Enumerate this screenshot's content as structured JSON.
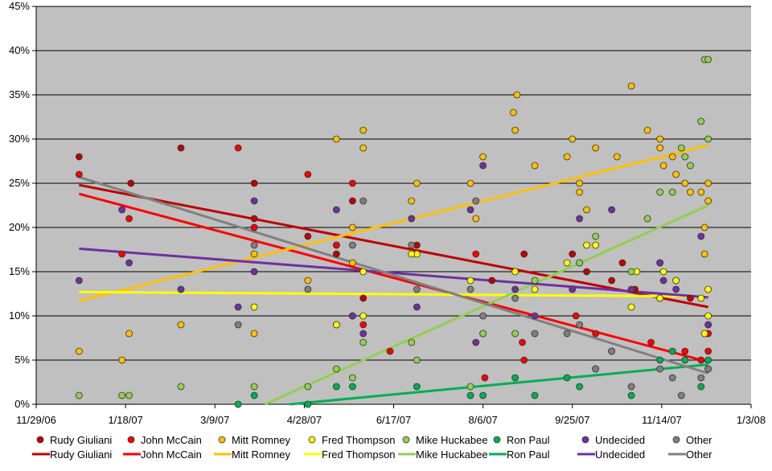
{
  "chart_data": {
    "type": "scatter",
    "title": "",
    "xlabel": "",
    "ylabel": "",
    "x_axis": {
      "type": "date",
      "min": "2006-11-29",
      "max": "2008-01-03",
      "tick_step_days": 50,
      "tick_labels": [
        "11/29/06",
        "1/18/07",
        "3/9/07",
        "4/28/07",
        "6/17/07",
        "8/6/07",
        "9/25/07",
        "11/14/07",
        "1/3/08"
      ]
    },
    "y_axis": {
      "min": 0,
      "max": 45,
      "step": 5,
      "format": "percent",
      "tick_labels": [
        "0%",
        "5%",
        "10%",
        "15%",
        "20%",
        "25%",
        "30%",
        "35%",
        "40%",
        "45%"
      ]
    },
    "grid": {
      "horizontal": true,
      "vertical": false
    },
    "plot_background": "#c0c0c0",
    "legend_placement": "bottom",
    "series": [
      {
        "name": "Rudy Giuliani",
        "color": "#c00000",
        "points": [
          [
            "2006-12-23",
            28
          ],
          [
            "2007-01-21",
            25
          ],
          [
            "2007-02-18",
            29
          ],
          [
            "2007-03-31",
            25
          ],
          [
            "2007-03-31",
            21
          ],
          [
            "2007-03-31",
            20
          ],
          [
            "2007-04-30",
            19
          ],
          [
            "2007-05-16",
            18
          ],
          [
            "2007-05-16",
            17
          ],
          [
            "2007-05-25",
            23
          ],
          [
            "2007-05-31",
            12
          ],
          [
            "2007-06-30",
            18
          ],
          [
            "2007-08-11",
            14
          ],
          [
            "2007-08-29",
            17
          ],
          [
            "2007-09-25",
            17
          ],
          [
            "2007-10-03",
            15
          ],
          [
            "2007-10-17",
            14
          ],
          [
            "2007-10-23",
            16
          ],
          [
            "2007-10-30",
            13
          ],
          [
            "2007-11-13",
            16
          ],
          [
            "2007-11-22",
            14
          ],
          [
            "2007-11-30",
            12
          ],
          [
            "2007-12-10",
            9
          ]
        ],
        "trend": [
          [
            "2006-12-23",
            24.8
          ],
          [
            "2007-12-10",
            11
          ]
        ]
      },
      {
        "name": "John McCain",
        "color": "#ff0000",
        "points": [
          [
            "2006-12-23",
            26
          ],
          [
            "2007-01-20",
            21
          ],
          [
            "2007-01-16",
            17
          ],
          [
            "2007-03-22",
            29
          ],
          [
            "2007-03-31",
            20
          ],
          [
            "2007-04-30",
            26
          ],
          [
            "2007-05-25",
            25
          ],
          [
            "2007-05-16",
            18
          ],
          [
            "2007-05-31",
            9
          ],
          [
            "2007-06-15",
            6
          ],
          [
            "2007-08-02",
            17
          ],
          [
            "2007-08-07",
            3
          ],
          [
            "2007-08-28",
            7
          ],
          [
            "2007-08-29",
            5
          ],
          [
            "2007-09-27",
            10
          ],
          [
            "2007-10-08",
            8
          ],
          [
            "2007-10-17",
            6
          ],
          [
            "2007-11-08",
            7
          ],
          [
            "2007-11-13",
            12
          ],
          [
            "2007-11-27",
            6
          ],
          [
            "2007-12-06",
            5
          ],
          [
            "2007-12-10",
            4
          ],
          [
            "2007-12-10",
            6
          ],
          [
            "2007-12-10",
            8
          ]
        ],
        "trend": [
          [
            "2006-12-23",
            23.8
          ],
          [
            "2007-12-10",
            4.8
          ]
        ]
      },
      {
        "name": "Mitt Romney",
        "color": "#ffc000",
        "points": [
          [
            "2006-12-23",
            6
          ],
          [
            "2007-01-16",
            5
          ],
          [
            "2007-01-20",
            8
          ],
          [
            "2007-02-18",
            9
          ],
          [
            "2007-03-31",
            17
          ],
          [
            "2007-03-31",
            8
          ],
          [
            "2007-04-30",
            14
          ],
          [
            "2007-05-16",
            30
          ],
          [
            "2007-05-16",
            9
          ],
          [
            "2007-05-25",
            20
          ],
          [
            "2007-05-25",
            16
          ],
          [
            "2007-05-31",
            31
          ],
          [
            "2007-05-31",
            29
          ],
          [
            "2007-06-30",
            25
          ],
          [
            "2007-06-27",
            23
          ],
          [
            "2007-07-30",
            25
          ],
          [
            "2007-08-02",
            21
          ],
          [
            "2007-08-06",
            28
          ],
          [
            "2007-08-23",
            33
          ],
          [
            "2007-08-25",
            35
          ],
          [
            "2007-08-24",
            31
          ],
          [
            "2007-09-04",
            27
          ],
          [
            "2007-09-22",
            28
          ],
          [
            "2007-09-25",
            30
          ],
          [
            "2007-09-29",
            25
          ],
          [
            "2007-09-29",
            24
          ],
          [
            "2007-10-03",
            22
          ],
          [
            "2007-10-08",
            29
          ],
          [
            "2007-10-20",
            28
          ],
          [
            "2007-10-28",
            36
          ],
          [
            "2007-11-06",
            31
          ],
          [
            "2007-11-13",
            30
          ],
          [
            "2007-11-13",
            29
          ],
          [
            "2007-11-15",
            27
          ],
          [
            "2007-11-20",
            28
          ],
          [
            "2007-11-22",
            26
          ],
          [
            "2007-11-27",
            25
          ],
          [
            "2007-11-30",
            24
          ],
          [
            "2007-12-06",
            24
          ],
          [
            "2007-12-10",
            25
          ],
          [
            "2007-12-10",
            23
          ],
          [
            "2007-12-08",
            20
          ],
          [
            "2007-12-08",
            17
          ]
        ],
        "trend": [
          [
            "2006-12-23",
            11.7
          ],
          [
            "2007-12-10",
            29.3
          ]
        ]
      },
      {
        "name": "Fred Thompson",
        "color": "#ffff00",
        "points": [
          [
            "2007-03-31",
            11
          ],
          [
            "2007-05-16",
            9
          ],
          [
            "2007-05-25",
            10
          ],
          [
            "2007-05-31",
            15
          ],
          [
            "2007-05-31",
            10
          ],
          [
            "2007-06-30",
            17
          ],
          [
            "2007-06-27",
            17
          ],
          [
            "2007-07-30",
            14
          ],
          [
            "2007-08-06",
            8
          ],
          [
            "2007-08-24",
            15
          ],
          [
            "2007-09-04",
            13
          ],
          [
            "2007-09-22",
            16
          ],
          [
            "2007-09-29",
            16
          ],
          [
            "2007-10-03",
            18
          ],
          [
            "2007-10-08",
            18
          ],
          [
            "2007-10-28",
            11
          ],
          [
            "2007-10-31",
            15
          ],
          [
            "2007-11-13",
            12
          ],
          [
            "2007-11-15",
            15
          ],
          [
            "2007-11-22",
            14
          ],
          [
            "2007-12-06",
            12
          ],
          [
            "2007-12-10",
            13
          ],
          [
            "2007-12-10",
            10
          ],
          [
            "2007-12-08",
            8
          ]
        ],
        "trend": [
          [
            "2006-12-23",
            12.7
          ],
          [
            "2007-12-10",
            12.2
          ]
        ]
      },
      {
        "name": "Mike Huckabee",
        "color": "#92d050",
        "points": [
          [
            "2006-12-23",
            1
          ],
          [
            "2007-01-16",
            1
          ],
          [
            "2007-01-20",
            1
          ],
          [
            "2007-02-18",
            2
          ],
          [
            "2007-03-31",
            2
          ],
          [
            "2007-04-30",
            2
          ],
          [
            "2007-05-16",
            4
          ],
          [
            "2007-05-25",
            3
          ],
          [
            "2007-05-31",
            7
          ],
          [
            "2007-06-30",
            5
          ],
          [
            "2007-06-27",
            7
          ],
          [
            "2007-07-30",
            2
          ],
          [
            "2007-08-06",
            8
          ],
          [
            "2007-08-24",
            8
          ],
          [
            "2007-09-04",
            14
          ],
          [
            "2007-09-29",
            16
          ],
          [
            "2007-10-08",
            19
          ],
          [
            "2007-10-28",
            15
          ],
          [
            "2007-11-06",
            21
          ],
          [
            "2007-11-13",
            24
          ],
          [
            "2007-11-20",
            24
          ],
          [
            "2007-11-25",
            29
          ],
          [
            "2007-11-27",
            28
          ],
          [
            "2007-11-30",
            27
          ],
          [
            "2007-12-06",
            32
          ],
          [
            "2007-12-08",
            39
          ],
          [
            "2007-12-10",
            39
          ],
          [
            "2007-12-10",
            30
          ]
        ],
        "trend": [
          [
            "2007-04-06",
            0
          ],
          [
            "2007-12-10",
            22.5
          ]
        ]
      },
      {
        "name": "Ron Paul",
        "color": "#00b050",
        "points": [
          [
            "2007-03-22",
            0
          ],
          [
            "2007-03-31",
            1
          ],
          [
            "2007-04-30",
            0
          ],
          [
            "2007-05-16",
            2
          ],
          [
            "2007-05-25",
            2
          ],
          [
            "2007-06-30",
            2
          ],
          [
            "2007-07-30",
            1
          ],
          [
            "2007-08-06",
            1
          ],
          [
            "2007-08-24",
            3
          ],
          [
            "2007-09-04",
            1
          ],
          [
            "2007-09-22",
            3
          ],
          [
            "2007-09-29",
            2
          ],
          [
            "2007-10-08",
            4
          ],
          [
            "2007-10-28",
            1
          ],
          [
            "2007-11-13",
            5
          ],
          [
            "2007-11-20",
            6
          ],
          [
            "2007-11-27",
            5
          ],
          [
            "2007-12-06",
            2
          ],
          [
            "2007-12-10",
            5
          ]
        ],
        "trend": [
          [
            "2007-04-20",
            0
          ],
          [
            "2007-12-10",
            4.5
          ]
        ]
      },
      {
        "name": "Undecided",
        "color": "#7030a0",
        "points": [
          [
            "2006-12-23",
            14
          ],
          [
            "2007-01-16",
            22
          ],
          [
            "2007-01-20",
            16
          ],
          [
            "2007-02-18",
            13
          ],
          [
            "2007-03-22",
            11
          ],
          [
            "2007-03-31",
            23
          ],
          [
            "2007-03-31",
            15
          ],
          [
            "2007-05-16",
            22
          ],
          [
            "2007-05-25",
            10
          ],
          [
            "2007-05-31",
            8
          ],
          [
            "2007-06-27",
            21
          ],
          [
            "2007-06-30",
            11
          ],
          [
            "2007-07-30",
            22
          ],
          [
            "2007-08-02",
            7
          ],
          [
            "2007-08-06",
            27
          ],
          [
            "2007-08-24",
            13
          ],
          [
            "2007-09-04",
            10
          ],
          [
            "2007-09-25",
            13
          ],
          [
            "2007-09-29",
            21
          ],
          [
            "2007-10-17",
            22
          ],
          [
            "2007-10-28",
            13
          ],
          [
            "2007-11-13",
            16
          ],
          [
            "2007-11-15",
            14
          ],
          [
            "2007-11-22",
            13
          ],
          [
            "2007-12-06",
            19
          ],
          [
            "2007-12-10",
            9
          ]
        ],
        "trend": [
          [
            "2006-12-23",
            17.6
          ],
          [
            "2007-12-10",
            12.1
          ]
        ]
      },
      {
        "name": "Other",
        "color": "#808080",
        "points": [
          [
            "2007-03-22",
            9
          ],
          [
            "2007-03-31",
            18
          ],
          [
            "2007-04-30",
            13
          ],
          [
            "2007-05-31",
            23
          ],
          [
            "2007-05-25",
            18
          ],
          [
            "2007-06-27",
            18
          ],
          [
            "2007-06-30",
            13
          ],
          [
            "2007-07-30",
            13
          ],
          [
            "2007-08-02",
            23
          ],
          [
            "2007-08-06",
            10
          ],
          [
            "2007-08-24",
            12
          ],
          [
            "2007-09-04",
            8
          ],
          [
            "2007-09-22",
            8
          ],
          [
            "2007-09-29",
            9
          ],
          [
            "2007-10-08",
            4
          ],
          [
            "2007-10-17",
            6
          ],
          [
            "2007-10-28",
            2
          ],
          [
            "2007-11-13",
            4
          ],
          [
            "2007-11-20",
            3
          ],
          [
            "2007-11-25",
            1
          ],
          [
            "2007-12-06",
            3
          ],
          [
            "2007-12-10",
            4
          ]
        ],
        "trend": [
          [
            "2006-12-23",
            25.7
          ],
          [
            "2007-12-10",
            3.5
          ]
        ]
      }
    ]
  }
}
